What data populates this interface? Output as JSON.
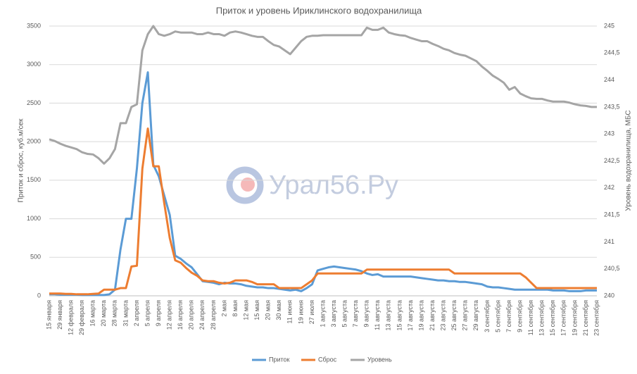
{
  "chart_data": {
    "type": "line",
    "title": "Приток и уровень Ириклинского водохранилища",
    "ylabel": "Приток и сброс, куб.м/сек",
    "y2label": "Уровень водохранилища, МБС",
    "watermark": "Урал56.Ру",
    "categories": [
      "15 января",
      null,
      "29 января",
      null,
      "12 февраля",
      null,
      "29 февраля",
      null,
      "16 марта",
      null,
      "20 марта",
      null,
      "28 марта",
      null,
      "31 марта",
      null,
      "2 апреля",
      null,
      "5 апреля",
      null,
      "9 апреля",
      null,
      "12 апреля",
      null,
      "16 апреля",
      null,
      "20 апреля",
      null,
      "24 апреля",
      null,
      "28 апреля",
      null,
      "2 мая",
      null,
      "8 мая",
      null,
      "12 мая",
      null,
      "15 мая",
      null,
      "20 мая",
      null,
      "30 мая",
      null,
      "11 июня",
      null,
      "19 июня",
      null,
      "27 июля",
      null,
      "1 августа",
      null,
      "3 августа",
      null,
      "5 августа",
      null,
      "7 августа",
      null,
      "9 августа",
      null,
      "11 августа",
      null,
      "13 августа",
      null,
      "15 августа",
      null,
      "17 августа",
      null,
      "19 августа",
      null,
      "21 августа",
      null,
      "23 августа",
      null,
      "25 августа",
      null,
      "27 августа",
      null,
      "29 августа",
      null,
      "3 сентября",
      null,
      "5 сентября",
      null,
      "7 сентября",
      null,
      "9 сентября",
      null,
      "11 сентября",
      null,
      "13 сентября",
      null,
      "15 сентября",
      null,
      "17 сентября",
      null,
      "19 сентября",
      null,
      "21 сентября",
      null,
      "23 сентября"
    ],
    "series": [
      {
        "name": "Приток",
        "color": "#5b9bd5",
        "values": [
          20,
          20,
          15,
          15,
          15,
          15,
          10,
          10,
          10,
          10,
          10,
          20,
          80,
          600,
          1000,
          1000,
          1650,
          2500,
          2900,
          1700,
          1550,
          1300,
          1050,
          520,
          480,
          420,
          370,
          280,
          190,
          180,
          170,
          150,
          170,
          160,
          160,
          150,
          130,
          120,
          110,
          110,
          100,
          100,
          90,
          80,
          70,
          80,
          60,
          100,
          150,
          330,
          350,
          370,
          380,
          370,
          360,
          350,
          340,
          320,
          290,
          270,
          280,
          250,
          250,
          250,
          250,
          250,
          250,
          240,
          230,
          220,
          210,
          200,
          200,
          190,
          190,
          180,
          180,
          170,
          160,
          150,
          120,
          110,
          110,
          100,
          90,
          80,
          80,
          80,
          80,
          80,
          80,
          80,
          70,
          70,
          70,
          60,
          60,
          60,
          70,
          70,
          70
        ]
      },
      {
        "name": "Сброс",
        "color": "#ed7d31",
        "values": [
          30,
          30,
          30,
          25,
          25,
          20,
          20,
          20,
          25,
          30,
          80,
          80,
          80,
          100,
          100,
          380,
          390,
          1650,
          2170,
          1680,
          1680,
          1200,
          750,
          460,
          430,
          360,
          300,
          260,
          200,
          190,
          190,
          170,
          160,
          170,
          200,
          200,
          200,
          180,
          150,
          150,
          150,
          150,
          100,
          100,
          100,
          100,
          100,
          150,
          200,
          290,
          290,
          290,
          290,
          290,
          290,
          290,
          290,
          290,
          340,
          340,
          340,
          340,
          340,
          340,
          340,
          340,
          340,
          340,
          340,
          340,
          340,
          340,
          340,
          340,
          290,
          290,
          290,
          290,
          290,
          290,
          290,
          290,
          290,
          290,
          290,
          290,
          290,
          240,
          170,
          100,
          100,
          100,
          100,
          100,
          100,
          100,
          100,
          100,
          100,
          100,
          100
        ]
      },
      {
        "name": "Уровень",
        "color": "#a5a5a5",
        "axis": "y2",
        "values": [
          242.9,
          242.87,
          242.82,
          242.78,
          242.75,
          242.72,
          242.66,
          242.63,
          242.62,
          242.55,
          242.45,
          242.55,
          242.72,
          243.2,
          243.2,
          243.5,
          243.55,
          244.55,
          244.85,
          245.0,
          244.85,
          244.82,
          244.85,
          244.9,
          244.88,
          244.88,
          244.88,
          244.85,
          244.85,
          244.88,
          244.85,
          244.85,
          244.82,
          244.88,
          244.9,
          244.88,
          244.85,
          244.82,
          244.8,
          244.8,
          244.72,
          244.65,
          244.62,
          244.55,
          244.48,
          244.6,
          244.72,
          244.8,
          244.82,
          244.82,
          244.83,
          244.83,
          244.83,
          244.83,
          244.83,
          244.83,
          244.83,
          244.83,
          244.97,
          244.93,
          244.93,
          244.97,
          244.88,
          244.85,
          244.83,
          244.82,
          244.78,
          244.75,
          244.72,
          244.72,
          244.67,
          244.63,
          244.58,
          244.55,
          244.5,
          244.47,
          244.45,
          244.4,
          244.35,
          244.25,
          244.17,
          244.08,
          244.02,
          243.95,
          243.82,
          243.87,
          243.75,
          243.7,
          243.66,
          243.65,
          243.65,
          243.62,
          243.6,
          243.6,
          243.6,
          243.58,
          243.55,
          243.53,
          243.52,
          243.5,
          243.5
        ]
      }
    ],
    "ylim": [
      0,
      3500
    ],
    "yticks": [
      0,
      500,
      1000,
      1500,
      2000,
      2500,
      3000,
      3500
    ],
    "y2lim": [
      240,
      245
    ],
    "y2ticks": [
      240,
      {
        "value": 240.5,
        "label": "240,5"
      },
      241,
      {
        "value": 241.5,
        "label": "241,5"
      },
      242,
      {
        "value": 242.5,
        "label": "242,5"
      },
      243,
      {
        "value": 243.5,
        "label": "243,5"
      },
      244,
      {
        "value": 244.5,
        "label": "244,5"
      },
      245
    ],
    "grid": true,
    "legend": "bottom"
  }
}
